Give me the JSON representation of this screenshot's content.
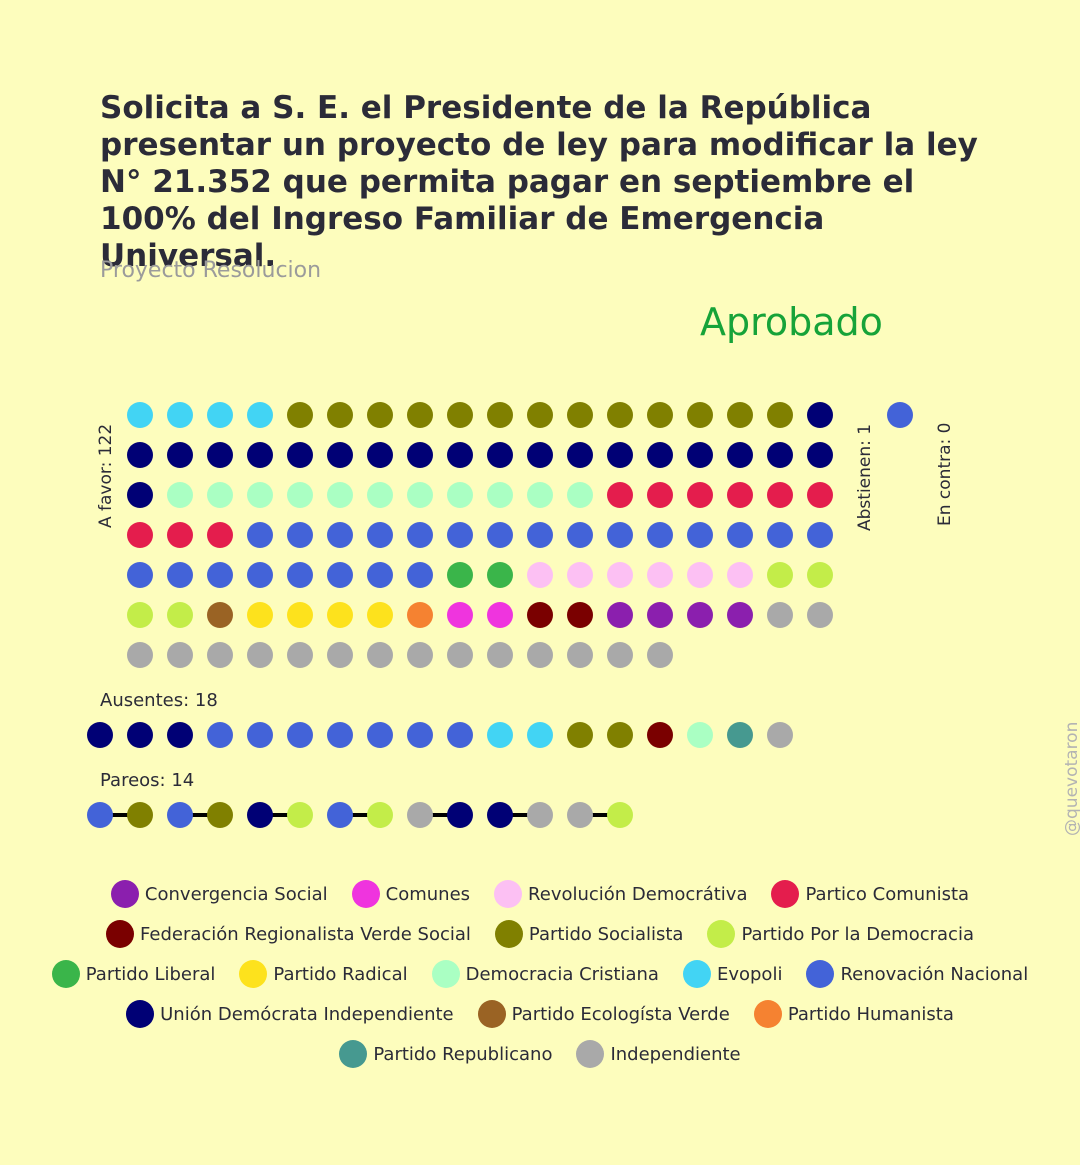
{
  "title": "Solicita a S. E. el Presidente de la República presentar un proyecto de ley para modificar la ley N° 21.352 que permita pagar en septiembre el 100% del Ingreso Familiar de Emergencia Universal.",
  "subtitle": "Proyecto Resolucion",
  "result": "Aprobado",
  "labels": {
    "favor": "A favor: 122",
    "abstienen": "Abstienen: 1",
    "contra": "En contra: 0",
    "ausentes": "Ausentes: 18",
    "pareos": "Pareos: 14"
  },
  "watermark": "@quevotaron",
  "parties": {
    "CS": {
      "name": "Convergencia Social",
      "color": "#8b1fae"
    },
    "COM": {
      "name": "Comunes",
      "color": "#ef34de"
    },
    "RD": {
      "name": "Revolución Democrátiva",
      "color": "#fcc0f3"
    },
    "PC": {
      "name": "Partico Comunista",
      "color": "#e41d4d"
    },
    "FRVS": {
      "name": "Federación Regionalista Verde Social",
      "color": "#7a0000"
    },
    "PS": {
      "name": "Partido Socialista",
      "color": "#808000"
    },
    "PPD": {
      "name": "Partido Por la Democracia",
      "color": "#c3ed49"
    },
    "PL": {
      "name": "Partido Liberal",
      "color": "#3ab54a"
    },
    "PR": {
      "name": "Partido Radical",
      "color": "#fde21d"
    },
    "DC": {
      "name": "Democracia Cristiana",
      "color": "#aaffc3"
    },
    "EVO": {
      "name": "Evopoli",
      "color": "#42d4f4"
    },
    "RN": {
      "name": "Renovación Nacional",
      "color": "#4363d8"
    },
    "UDI": {
      "name": "Unión Demócrata Independiente",
      "color": "#000075"
    },
    "PEV": {
      "name": "Partido Ecologísta Verde",
      "color": "#9a6324"
    },
    "PH": {
      "name": "Partido Humanista",
      "color": "#f58231"
    },
    "REP": {
      "name": "Partido Republicano",
      "color": "#469990"
    },
    "IND": {
      "name": "Independiente",
      "color": "#a9a9a9"
    }
  },
  "legend_rows": [
    [
      "CS",
      "COM",
      "RD",
      "PC"
    ],
    [
      "FRVS",
      "PS",
      "PPD"
    ],
    [
      "PL",
      "PR",
      "DC",
      "EVO",
      "RN"
    ],
    [
      "UDI",
      "PEV",
      "PH"
    ],
    [
      "REP",
      "IND"
    ]
  ],
  "chart_data": {
    "type": "parliament-dot",
    "favor": [
      "EVO",
      "EVO",
      "EVO",
      "EVO",
      "PS",
      "PS",
      "PS",
      "PS",
      "PS",
      "PS",
      "PS",
      "PS",
      "PS",
      "PS",
      "PS",
      "PS",
      "PS",
      "UDI",
      "UDI",
      "UDI",
      "UDI",
      "UDI",
      "UDI",
      "UDI",
      "UDI",
      "UDI",
      "UDI",
      "UDI",
      "UDI",
      "UDI",
      "UDI",
      "UDI",
      "UDI",
      "UDI",
      "UDI",
      "UDI",
      "UDI",
      "DC",
      "DC",
      "DC",
      "DC",
      "DC",
      "DC",
      "DC",
      "DC",
      "DC",
      "DC",
      "DC",
      "PC",
      "PC",
      "PC",
      "PC",
      "PC",
      "PC",
      "PC",
      "PC",
      "PC",
      "RN",
      "RN",
      "RN",
      "RN",
      "RN",
      "RN",
      "RN",
      "RN",
      "RN",
      "RN",
      "RN",
      "RN",
      "RN",
      "RN",
      "RN",
      "RN",
      "RN",
      "RN",
      "RN",
      "RN",
      "RN",
      "RN",
      "RN",
      "PL",
      "PL",
      "RD",
      "RD",
      "RD",
      "RD",
      "RD",
      "RD",
      "PPD",
      "PPD",
      "PPD",
      "PPD",
      "PEV",
      "PR",
      "PR",
      "PR",
      "PR",
      "PH",
      "COM",
      "COM",
      "FRVS",
      "FRVS",
      "CS",
      "CS",
      "CS",
      "CS",
      "IND",
      "IND",
      "IND",
      "IND",
      "IND",
      "IND",
      "IND",
      "IND",
      "IND",
      "IND",
      "IND",
      "IND",
      "IND",
      "IND",
      "IND",
      "IND"
    ],
    "abstienen": [
      "RN"
    ],
    "contra": [],
    "ausentes": [
      "UDI",
      "UDI",
      "UDI",
      "RN",
      "RN",
      "RN",
      "RN",
      "RN",
      "RN",
      "RN",
      "EVO",
      "EVO",
      "PS",
      "PS",
      "FRVS",
      "DC",
      "REP",
      "IND"
    ],
    "pareos": [
      [
        "RN",
        "PS"
      ],
      [
        "RN",
        "PS"
      ],
      [
        "UDI",
        "PPD"
      ],
      [
        "RN",
        "PPD"
      ],
      [
        "IND",
        "UDI"
      ],
      [
        "UDI",
        "IND"
      ],
      [
        "IND",
        "PPD"
      ]
    ]
  }
}
